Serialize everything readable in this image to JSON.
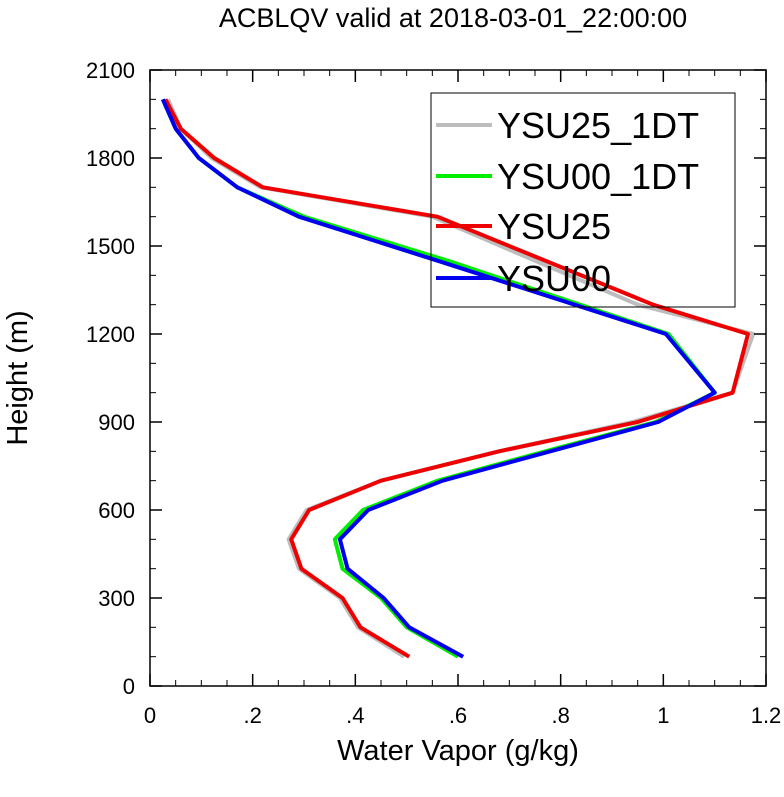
{
  "chart_data": {
    "type": "line",
    "title": "ACBLQV valid at 2018-03-01_22:00:00",
    "xlabel": "Water Vapor (g/kg)",
    "ylabel": "Height (m)",
    "xlim": [
      0,
      1.2
    ],
    "ylim": [
      0,
      2100
    ],
    "x_ticks": [
      0,
      0.2,
      0.4,
      0.6,
      0.8,
      1,
      1.2
    ],
    "x_tick_labels": [
      "0",
      ".2",
      ".4",
      ".6",
      ".8",
      "1",
      "1.2"
    ],
    "y_ticks": [
      0,
      300,
      600,
      900,
      1200,
      1500,
      1800,
      2100
    ],
    "y_tick_labels": [
      "0",
      "300",
      "600",
      "900",
      "1200",
      "1500",
      "1800",
      "2100"
    ],
    "grid": false,
    "legend_position": "top-right",
    "series": [
      {
        "name": "YSU25_1DT",
        "color": "#bdbdbd",
        "x": [
          0.495,
          0.405,
          0.37,
          0.29,
          0.27,
          0.305,
          0.45,
          0.68,
          0.94,
          1.135,
          1.175,
          0.95,
          0.55,
          0.215,
          0.12,
          0.06,
          0.035
        ],
        "y": [
          100,
          200,
          300,
          400,
          500,
          600,
          700,
          800,
          900,
          1000,
          1200,
          1300,
          1600,
          1700,
          1800,
          1900,
          2000
        ]
      },
      {
        "name": "YSU00_1DT",
        "color": "#00ee00",
        "x": [
          0.6,
          0.5,
          0.45,
          0.375,
          0.36,
          0.415,
          0.56,
          0.77,
          0.985,
          1.1,
          1.01,
          0.58,
          0.3,
          0.17,
          0.095,
          0.05,
          0.025
        ],
        "y": [
          100,
          200,
          300,
          400,
          500,
          600,
          700,
          800,
          900,
          1000,
          1200,
          1450,
          1600,
          1700,
          1800,
          1900,
          2000
        ]
      },
      {
        "name": "YSU25",
        "color": "#ee0000",
        "x": [
          0.505,
          0.41,
          0.375,
          0.295,
          0.275,
          0.31,
          0.45,
          0.68,
          0.95,
          1.135,
          1.165,
          0.98,
          0.56,
          0.22,
          0.125,
          0.06,
          0.03
        ],
        "y": [
          100,
          200,
          300,
          400,
          500,
          600,
          700,
          800,
          900,
          1000,
          1200,
          1300,
          1600,
          1700,
          1800,
          1900,
          2000
        ]
      },
      {
        "name": "YSU00",
        "color": "#0000ee",
        "x": [
          0.61,
          0.505,
          0.455,
          0.385,
          0.37,
          0.425,
          0.57,
          0.78,
          0.99,
          1.1,
          1.005,
          0.56,
          0.29,
          0.17,
          0.095,
          0.05,
          0.025
        ],
        "y": [
          100,
          200,
          300,
          400,
          500,
          600,
          700,
          800,
          900,
          1000,
          1200,
          1450,
          1600,
          1700,
          1800,
          1900,
          2000
        ]
      }
    ]
  }
}
